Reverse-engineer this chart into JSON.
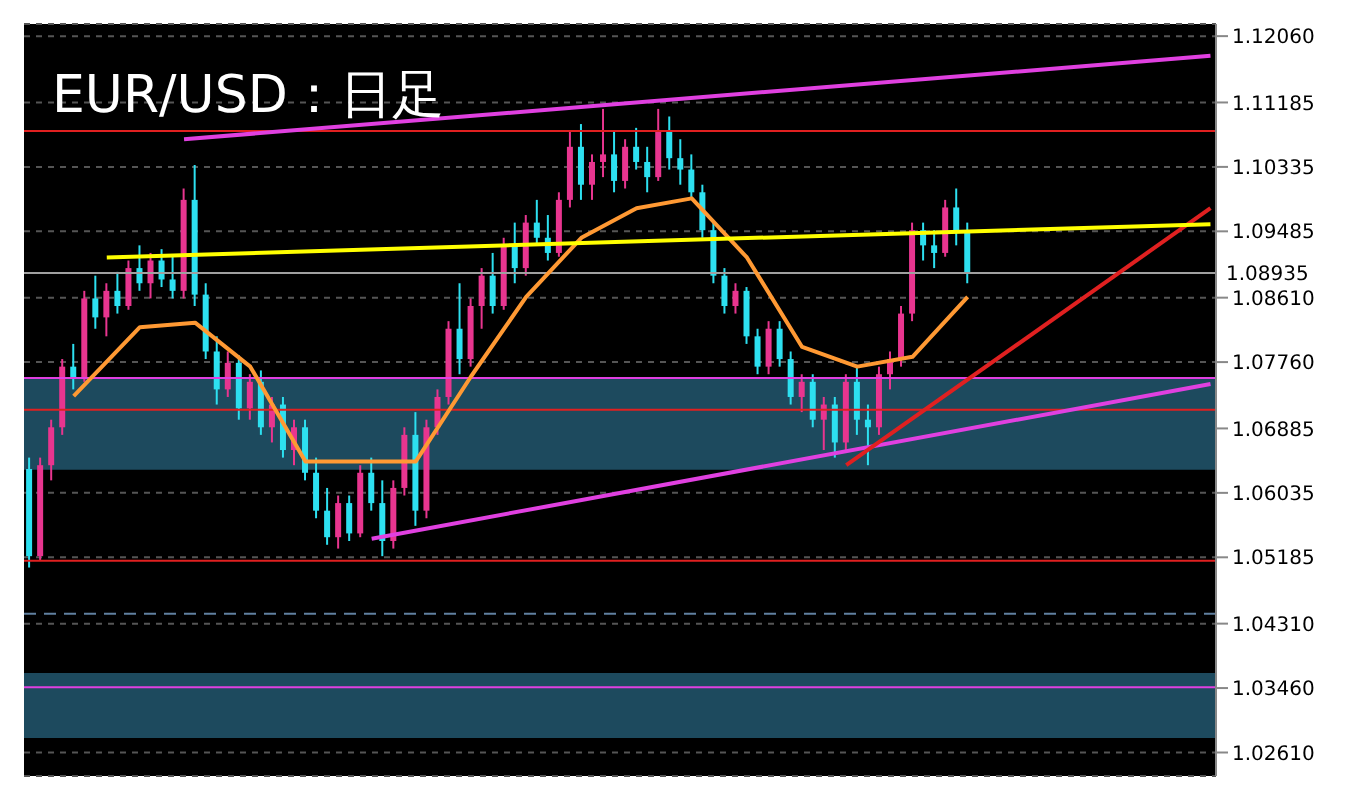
{
  "chart_data": {
    "type": "candlestick",
    "title": "EUR/USD：日足",
    "categories": [
      null,
      null,
      null,
      null,
      null,
      null,
      null,
      null,
      null,
      null,
      null,
      null,
      null,
      null,
      null,
      null,
      null,
      null,
      null,
      null,
      null,
      null,
      null,
      null,
      null,
      null,
      null,
      null,
      null,
      null,
      null,
      null,
      null,
      null,
      null,
      null,
      null,
      null,
      null,
      null,
      null,
      null,
      null,
      null,
      null,
      null,
      null,
      null,
      null,
      null,
      null,
      null,
      null,
      null,
      null,
      null,
      null,
      null,
      null,
      null,
      null,
      null,
      null,
      null,
      null,
      null,
      null,
      null,
      null,
      null,
      null,
      null,
      null,
      null,
      null,
      null,
      null,
      null,
      null,
      null,
      null,
      null,
      null,
      null,
      null,
      null,
      null,
      null,
      null,
      null,
      null,
      null,
      null,
      null,
      null,
      null,
      null,
      null,
      null,
      null,
      null,
      null,
      null,
      null,
      null,
      null,
      null,
      null
    ],
    "ohlc": [
      [
        1.0635,
        1.065,
        1.0505,
        1.052
      ],
      [
        1.052,
        1.065,
        1.0515,
        1.064
      ],
      [
        1.064,
        1.07,
        1.062,
        1.069
      ],
      [
        1.069,
        1.078,
        1.068,
        1.077
      ],
      [
        1.077,
        1.08,
        1.074,
        1.0755
      ],
      [
        1.0755,
        1.087,
        1.075,
        1.086
      ],
      [
        1.086,
        1.089,
        1.082,
        1.0835
      ],
      [
        1.0835,
        1.088,
        1.081,
        1.087
      ],
      [
        1.087,
        1.0895,
        1.084,
        1.085
      ],
      [
        1.085,
        1.091,
        1.0845,
        1.09
      ],
      [
        1.09,
        1.093,
        1.087,
        1.088
      ],
      [
        1.088,
        1.092,
        1.086,
        1.091
      ],
      [
        1.091,
        1.0925,
        1.0875,
        1.0885
      ],
      [
        1.0885,
        1.0915,
        1.086,
        1.087
      ],
      [
        1.087,
        1.1005,
        1.086,
        1.099
      ],
      [
        1.099,
        1.1036,
        1.085,
        1.0865
      ],
      [
        1.0865,
        1.088,
        1.078,
        1.079
      ],
      [
        1.079,
        1.081,
        1.072,
        1.074
      ],
      [
        1.074,
        1.079,
        1.073,
        1.0775
      ],
      [
        1.0775,
        1.0785,
        1.07,
        1.0715
      ],
      [
        1.0715,
        1.076,
        1.07,
        1.075
      ],
      [
        1.075,
        1.0765,
        1.068,
        1.069
      ],
      [
        1.069,
        1.073,
        1.067,
        1.072
      ],
      [
        1.072,
        1.073,
        1.065,
        1.066
      ],
      [
        1.066,
        1.07,
        1.064,
        1.069
      ],
      [
        1.069,
        1.07,
        1.062,
        1.063
      ],
      [
        1.063,
        1.065,
        1.057,
        1.058
      ],
      [
        1.058,
        1.061,
        1.0535,
        1.0545
      ],
      [
        1.0545,
        1.06,
        1.053,
        1.059
      ],
      [
        1.059,
        1.06,
        1.054,
        1.055
      ],
      [
        1.055,
        1.064,
        1.0545,
        1.063
      ],
      [
        1.063,
        1.065,
        1.058,
        1.059
      ],
      [
        1.059,
        1.062,
        1.052,
        1.054
      ],
      [
        1.054,
        1.062,
        1.053,
        1.061
      ],
      [
        1.061,
        1.069,
        1.06,
        1.068
      ],
      [
        1.068,
        1.071,
        1.056,
        1.058
      ],
      [
        1.058,
        1.07,
        1.057,
        1.069
      ],
      [
        1.069,
        1.074,
        1.068,
        1.073
      ],
      [
        1.073,
        1.083,
        1.072,
        1.082
      ],
      [
        1.082,
        1.088,
        1.076,
        1.078
      ],
      [
        1.078,
        1.086,
        1.077,
        1.085
      ],
      [
        1.085,
        1.09,
        1.082,
        1.089
      ],
      [
        1.089,
        1.092,
        1.084,
        1.085
      ],
      [
        1.085,
        1.094,
        1.0845,
        1.093
      ],
      [
        1.093,
        1.096,
        1.088,
        1.09
      ],
      [
        1.09,
        1.097,
        1.089,
        1.096
      ],
      [
        1.096,
        1.099,
        1.093,
        1.094
      ],
      [
        1.094,
        1.097,
        1.091,
        1.092
      ],
      [
        1.092,
        1.1,
        1.0915,
        1.099
      ],
      [
        1.099,
        1.108,
        1.098,
        1.106
      ],
      [
        1.106,
        1.109,
        1.099,
        1.101
      ],
      [
        1.101,
        1.105,
        1.099,
        1.104
      ],
      [
        1.104,
        1.111,
        1.102,
        1.105
      ],
      [
        1.105,
        1.108,
        1.1,
        1.1015
      ],
      [
        1.1015,
        1.107,
        1.1005,
        1.106
      ],
      [
        1.106,
        1.1085,
        1.103,
        1.104
      ],
      [
        1.104,
        1.106,
        1.1,
        1.102
      ],
      [
        1.102,
        1.111,
        1.1015,
        1.108
      ],
      [
        1.108,
        1.11,
        1.103,
        1.1045
      ],
      [
        1.1045,
        1.107,
        1.101,
        1.103
      ],
      [
        1.103,
        1.105,
        1.099,
        1.1
      ],
      [
        1.1,
        1.101,
        1.094,
        1.095
      ],
      [
        1.095,
        1.096,
        1.088,
        1.089
      ],
      [
        1.089,
        1.09,
        1.084,
        1.085
      ],
      [
        1.085,
        1.088,
        1.084,
        1.087
      ],
      [
        1.087,
        1.0875,
        1.08,
        1.081
      ],
      [
        1.081,
        1.082,
        1.076,
        1.077
      ],
      [
        1.077,
        1.083,
        1.076,
        1.082
      ],
      [
        1.082,
        1.083,
        1.077,
        1.078
      ],
      [
        1.078,
        1.079,
        1.072,
        1.073
      ],
      [
        1.073,
        1.076,
        1.071,
        1.075
      ],
      [
        1.075,
        1.076,
        1.069,
        1.07
      ],
      [
        1.07,
        1.073,
        1.066,
        1.072
      ],
      [
        1.072,
        1.073,
        1.065,
        1.067
      ],
      [
        1.067,
        1.076,
        1.066,
        1.075
      ],
      [
        1.075,
        1.077,
        1.068,
        1.07
      ],
      [
        1.07,
        1.072,
        1.064,
        1.069
      ],
      [
        1.069,
        1.077,
        1.068,
        1.076
      ],
      [
        1.076,
        1.079,
        1.074,
        1.078
      ],
      [
        1.078,
        1.085,
        1.077,
        1.084
      ],
      [
        1.084,
        1.096,
        1.083,
        1.095
      ],
      [
        1.095,
        1.096,
        1.091,
        1.093
      ],
      [
        1.093,
        1.095,
        1.09,
        1.092
      ],
      [
        1.092,
        1.099,
        1.0915,
        1.098
      ],
      [
        1.098,
        1.1005,
        1.093,
        1.095
      ],
      [
        1.095,
        1.096,
        1.088,
        1.0893
      ],
      null,
      null,
      null,
      null,
      null,
      null,
      null,
      null,
      null,
      null,
      null,
      null,
      null,
      null,
      null,
      null,
      null,
      null,
      null,
      null,
      null,
      null
    ],
    "colors": [
      "#2de0f0",
      "#e8358f",
      "#e8358f",
      "#e8358f",
      "#2de0f0",
      "#e8358f",
      "#2de0f0",
      "#e8358f",
      "#2de0f0",
      "#e8358f",
      "#2de0f0",
      "#e8358f",
      "#2de0f0",
      "#2de0f0",
      "#e8358f",
      "#2de0f0",
      "#2de0f0",
      "#2de0f0",
      "#e8358f",
      "#2de0f0",
      "#e8358f",
      "#2de0f0",
      "#e8358f",
      "#2de0f0",
      "#e8358f",
      "#2de0f0",
      "#2de0f0",
      "#2de0f0",
      "#e8358f",
      "#2de0f0",
      "#e8358f",
      "#2de0f0",
      "#2de0f0",
      "#e8358f",
      "#e8358f",
      "#2de0f0",
      "#e8358f",
      "#e8358f",
      "#e8358f",
      "#2de0f0",
      "#e8358f",
      "#e8358f",
      "#2de0f0",
      "#e8358f",
      "#2de0f0",
      "#e8358f",
      "#2de0f0",
      "#2de0f0",
      "#e8358f",
      "#e8358f",
      "#2de0f0",
      "#e8358f",
      "#e8358f",
      "#2de0f0",
      "#e8358f",
      "#2de0f0",
      "#2de0f0",
      "#e8358f",
      "#2de0f0",
      "#2de0f0",
      "#2de0f0",
      "#2de0f0",
      "#2de0f0",
      "#2de0f0",
      "#e8358f",
      "#2de0f0",
      "#2de0f0",
      "#e8358f",
      "#2de0f0",
      "#2de0f0",
      "#e8358f",
      "#2de0f0",
      "#e8358f",
      "#2de0f0",
      "#e8358f",
      "#2de0f0",
      "#2de0f0",
      "#e8358f",
      "#e8358f",
      "#e8358f",
      "#e8358f",
      "#2de0f0",
      "#2de0f0",
      "#e8358f",
      "#2de0f0",
      "#2de0f0",
      null,
      null,
      null,
      null,
      null,
      null,
      null,
      null,
      null,
      null,
      null,
      null,
      null,
      null,
      null,
      null,
      null,
      null,
      null,
      null,
      null,
      null
    ],
    "series": [
      {
        "type": "line",
        "color": "#ff9933",
        "values": [
          null,
          null,
          null,
          null,
          1.0731,
          null,
          null,
          null,
          null,
          null,
          1.0822,
          null,
          null,
          null,
          null,
          1.0828,
          null,
          null,
          null,
          null,
          1.077,
          null,
          null,
          null,
          null,
          1.0645,
          null,
          null,
          null,
          null,
          1.0645,
          null,
          null,
          null,
          null,
          1.0645,
          null,
          null,
          null,
          null,
          1.0757,
          null,
          null,
          null,
          null,
          1.0862,
          null,
          null,
          null,
          null,
          1.094,
          null,
          null,
          null,
          null,
          1.0979,
          null,
          null,
          null,
          null,
          1.0992,
          null,
          null,
          null,
          null,
          1.0914,
          null,
          null,
          null,
          null,
          1.0796,
          null,
          null,
          null,
          null,
          1.077,
          null,
          null,
          null,
          null,
          1.0783,
          null,
          null,
          null,
          null,
          1.0862,
          null,
          null,
          null,
          null,
          null,
          null,
          null,
          null,
          null,
          null,
          null,
          null,
          null,
          null,
          null,
          null,
          null,
          null,
          null,
          null,
          null,
          null
        ]
      },
      {
        "type": "line",
        "color": "#e040e0",
        "values": [
          null,
          null,
          null,
          null,
          null,
          null,
          null,
          null,
          null,
          null,
          null,
          null,
          null,
          null,
          1.107,
          null,
          null,
          null,
          null,
          null,
          null,
          null,
          null,
          null,
          null,
          null,
          null,
          null,
          null,
          null,
          null,
          null,
          null,
          null,
          null,
          null,
          null,
          null,
          null,
          null,
          null,
          null,
          null,
          null,
          null,
          null,
          null,
          null,
          null,
          null,
          null,
          null,
          null,
          null,
          null,
          null,
          null,
          null,
          null,
          null,
          null,
          null,
          null,
          null,
          null,
          null,
          null,
          null,
          null,
          null,
          null,
          null,
          null,
          null,
          null,
          null,
          null,
          null,
          null,
          null,
          null,
          null,
          null,
          null,
          null,
          null,
          null,
          null,
          null,
          null,
          null,
          null,
          null,
          null,
          null,
          null,
          null,
          null,
          null,
          null,
          null,
          null,
          null,
          null,
          null,
          null,
          null,
          1.118
        ]
      },
      {
        "type": "line",
        "color": "#e040e0",
        "values": [
          null,
          null,
          null,
          null,
          null,
          null,
          null,
          null,
          null,
          null,
          null,
          null,
          null,
          null,
          null,
          null,
          null,
          null,
          null,
          null,
          null,
          null,
          null,
          null,
          null,
          null,
          null,
          null,
          null,
          null,
          null,
          1.0543,
          null,
          null,
          null,
          null,
          null,
          null,
          null,
          null,
          null,
          null,
          null,
          null,
          null,
          null,
          null,
          null,
          null,
          null,
          null,
          null,
          null,
          null,
          null,
          null,
          null,
          null,
          null,
          null,
          null,
          null,
          null,
          null,
          null,
          null,
          null,
          null,
          null,
          null,
          null,
          null,
          null,
          null,
          null,
          null,
          null,
          null,
          null,
          null,
          null,
          null,
          null,
          null,
          null,
          null,
          null,
          null,
          null,
          null,
          null,
          null,
          null,
          null,
          null,
          null,
          null,
          null,
          null,
          null,
          null,
          null,
          null,
          null,
          null,
          null,
          null,
          1.0747
        ]
      },
      {
        "type": "line",
        "color": "#e02020",
        "values": [
          null,
          null,
          null,
          null,
          null,
          null,
          null,
          null,
          null,
          null,
          null,
          null,
          null,
          null,
          null,
          null,
          null,
          null,
          null,
          null,
          null,
          null,
          null,
          null,
          null,
          null,
          null,
          null,
          null,
          null,
          null,
          null,
          null,
          null,
          null,
          null,
          null,
          null,
          null,
          null,
          null,
          null,
          null,
          null,
          null,
          null,
          null,
          null,
          null,
          null,
          null,
          null,
          null,
          null,
          null,
          null,
          null,
          null,
          null,
          null,
          null,
          null,
          null,
          null,
          null,
          null,
          null,
          null,
          null,
          null,
          null,
          null,
          null,
          null,
          1.064,
          null,
          null,
          null,
          null,
          null,
          null,
          null,
          null,
          null,
          null,
          null,
          null,
          null,
          null,
          null,
          null,
          null,
          null,
          null,
          null,
          null,
          null,
          null,
          null,
          null,
          null,
          null,
          null,
          null,
          null,
          null,
          null,
          1.0979
        ]
      },
      {
        "type": "line",
        "color": "#ffff00",
        "values": [
          null,
          null,
          null,
          null,
          null,
          null,
          null,
          1.0914,
          null,
          null,
          null,
          null,
          null,
          null,
          null,
          null,
          null,
          null,
          null,
          null,
          null,
          null,
          null,
          null,
          null,
          null,
          null,
          null,
          null,
          null,
          null,
          null,
          null,
          null,
          null,
          null,
          null,
          null,
          null,
          null,
          null,
          null,
          null,
          null,
          null,
          null,
          null,
          null,
          null,
          null,
          null,
          null,
          null,
          null,
          null,
          null,
          null,
          null,
          null,
          null,
          null,
          null,
          null,
          null,
          null,
          null,
          null,
          null,
          null,
          null,
          null,
          null,
          null,
          null,
          null,
          null,
          null,
          null,
          null,
          null,
          null,
          null,
          null,
          null,
          null,
          null,
          null,
          null,
          null,
          null,
          null,
          null,
          null,
          null,
          null,
          null,
          null,
          null,
          null,
          null,
          null,
          null,
          null,
          null,
          null,
          null,
          null,
          1.0958
        ]
      }
    ],
    "bands": [
      {
        "axis": "y",
        "from": 1.0634,
        "to": 1.0755,
        "color": "#1d4a5e"
      },
      {
        "axis": "y",
        "from": 1.028,
        "to": 1.0366,
        "color": "#1d4a5e"
      }
    ],
    "ref_lines": [
      {
        "axis": "y",
        "value": 1.08935,
        "label": "1.08935",
        "color": "#a0a0a0"
      },
      {
        "axis": "y",
        "value": 1.0755,
        "color": "#e040e0"
      },
      {
        "axis": "y",
        "value": 1.0713,
        "color": "#e02020"
      },
      {
        "axis": "y",
        "value": 1.1081,
        "color": "#e02020"
      },
      {
        "axis": "y",
        "value": 1.0514,
        "color": "#e02020"
      },
      {
        "axis": "y",
        "value": 1.0444,
        "color": "#6080a0",
        "line_style": "dashed"
      },
      {
        "axis": "y",
        "value": 1.0347,
        "color": "#e040e0"
      }
    ],
    "ylim": [
      1.023,
      1.1222
    ],
    "yticks": [
      {
        "value": 1.1206,
        "label": "1.12060"
      },
      {
        "value": 1.11185,
        "label": "1.11185"
      },
      {
        "value": 1.10335,
        "label": "1.10335"
      },
      {
        "value": 1.09485,
        "label": "1.09485"
      },
      {
        "value": 1.0861,
        "label": "1.08610"
      },
      {
        "value": 1.0776,
        "label": "1.07760"
      },
      {
        "value": 1.06885,
        "label": "1.06885"
      },
      {
        "value": 1.06035,
        "label": "1.06035"
      },
      {
        "value": 1.05185,
        "label": "1.05185"
      },
      {
        "value": 1.0431,
        "label": "1.04310"
      },
      {
        "value": 1.0346,
        "label": "1.03460"
      },
      {
        "value": 1.0261,
        "label": "1.02610"
      }
    ],
    "tick_labels": "y",
    "grid": "y"
  }
}
